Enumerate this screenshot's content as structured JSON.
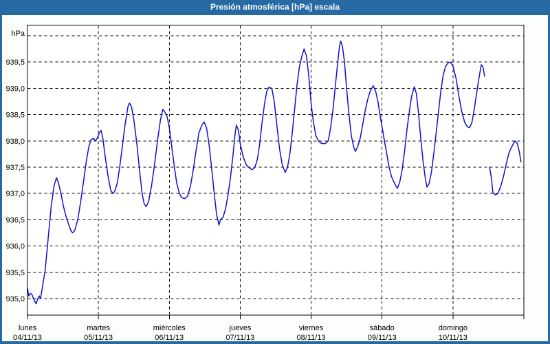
{
  "window": {
    "title": "Presión atmosférica [hPa] escala"
  },
  "colors": {
    "frame": "#2769A3",
    "titlebar_text": "#FFFFFF",
    "background": "#FCFEFC",
    "plot_background": "#FFFFFF",
    "line": "#1010CC",
    "grid": "#000000",
    "axis_text": "#000000"
  },
  "chart_data": {
    "type": "line",
    "title": "Presión atmosférica [hPa] escala",
    "unit_label": "hPa",
    "ylabel": "hPa",
    "grid": "dashed",
    "legend": "none",
    "ylim": [
      934.7,
      940.2
    ],
    "y_tick_step": 0.5,
    "y_ticks": [
      {
        "label": "939,5",
        "value": 939.5
      },
      {
        "label": "939,0",
        "value": 939.0
      },
      {
        "label": "938,5",
        "value": 938.5
      },
      {
        "label": "938,0",
        "value": 938.0
      },
      {
        "label": "937,5",
        "value": 937.5
      },
      {
        "label": "937,0",
        "value": 937.0
      },
      {
        "label": "936,5",
        "value": 936.5
      },
      {
        "label": "936,0",
        "value": 936.0
      },
      {
        "label": "935,5",
        "value": 935.5
      },
      {
        "label": "935,0",
        "value": 935.0
      }
    ],
    "x_days": [
      {
        "name": "lunes",
        "date": "04/11/13"
      },
      {
        "name": "martes",
        "date": "05/11/13"
      },
      {
        "name": "miércoles",
        "date": "06/11/13"
      },
      {
        "name": "jueves",
        "date": "07/11/13"
      },
      {
        "name": "viernes",
        "date": "08/11/13"
      },
      {
        "name": "sábado",
        "date": "09/11/13"
      },
      {
        "name": "domingo",
        "date": "10/11/13"
      }
    ],
    "x_unit": "hours since Monday 00:00",
    "xlim": [
      0,
      168
    ],
    "series": [
      {
        "name": "Presión atmosférica [hPa]",
        "points": [
          [
            0,
            935.2
          ],
          [
            0.4,
            935.05
          ],
          [
            1,
            935.1
          ],
          [
            1.5,
            935.08
          ],
          [
            2,
            935.0
          ],
          [
            2.9,
            934.9
          ],
          [
            3.5,
            935.0
          ],
          [
            4,
            935.05
          ],
          [
            4.4,
            935.0
          ],
          [
            5,
            935.2
          ],
          [
            6,
            935.55
          ],
          [
            7,
            936.15
          ],
          [
            8,
            936.75
          ],
          [
            9,
            937.15
          ],
          [
            9.8,
            937.3
          ],
          [
            10.5,
            937.2
          ],
          [
            11.3,
            937.0
          ],
          [
            12.2,
            936.75
          ],
          [
            13.1,
            936.55
          ],
          [
            14,
            936.4
          ],
          [
            14.8,
            936.28
          ],
          [
            15.3,
            936.25
          ],
          [
            16,
            936.3
          ],
          [
            17,
            936.5
          ],
          [
            18,
            936.85
          ],
          [
            19,
            937.25
          ],
          [
            20,
            937.65
          ],
          [
            20.8,
            937.9
          ],
          [
            21.5,
            938.02
          ],
          [
            22.3,
            938.05
          ],
          [
            23,
            938.0
          ],
          [
            23.6,
            938.05
          ],
          [
            24.3,
            938.15
          ],
          [
            24.9,
            938.2
          ],
          [
            25.5,
            938.05
          ],
          [
            26.3,
            937.7
          ],
          [
            27.2,
            937.35
          ],
          [
            28.2,
            937.05
          ],
          [
            29,
            937.0
          ],
          [
            29.6,
            937.05
          ],
          [
            30.4,
            937.2
          ],
          [
            31.2,
            937.5
          ],
          [
            32,
            937.85
          ],
          [
            33,
            938.3
          ],
          [
            34,
            938.65
          ],
          [
            34.5,
            938.72
          ],
          [
            35.2,
            938.65
          ],
          [
            36,
            938.4
          ],
          [
            37,
            937.95
          ],
          [
            38,
            937.4
          ],
          [
            38.8,
            937.0
          ],
          [
            39.5,
            936.8
          ],
          [
            40.2,
            936.75
          ],
          [
            41,
            936.85
          ],
          [
            42,
            937.15
          ],
          [
            43,
            937.55
          ],
          [
            44,
            938.0
          ],
          [
            45,
            938.4
          ],
          [
            45.8,
            938.6
          ],
          [
            46.5,
            938.55
          ],
          [
            47.3,
            938.45
          ],
          [
            48,
            938.25
          ],
          [
            48.8,
            937.9
          ],
          [
            49.6,
            937.55
          ],
          [
            50.5,
            937.2
          ],
          [
            51.4,
            937.0
          ],
          [
            52.2,
            936.92
          ],
          [
            53.2,
            936.9
          ],
          [
            54.2,
            936.95
          ],
          [
            55.2,
            937.15
          ],
          [
            56.1,
            937.45
          ],
          [
            57,
            937.8
          ],
          [
            58,
            938.15
          ],
          [
            59,
            938.3
          ],
          [
            59.8,
            938.36
          ],
          [
            60.6,
            938.25
          ],
          [
            61.4,
            937.95
          ],
          [
            62.2,
            937.55
          ],
          [
            63.1,
            937.05
          ],
          [
            64,
            936.6
          ],
          [
            64.8,
            936.4
          ],
          [
            65.3,
            936.5
          ],
          [
            66.2,
            936.55
          ],
          [
            67,
            936.7
          ],
          [
            67.8,
            936.95
          ],
          [
            68.7,
            937.3
          ],
          [
            69.5,
            937.7
          ],
          [
            70.2,
            938.1
          ],
          [
            70.7,
            938.3
          ],
          [
            71.4,
            938.2
          ],
          [
            72,
            937.95
          ],
          [
            73,
            937.7
          ],
          [
            74,
            937.55
          ],
          [
            74.8,
            937.5
          ],
          [
            76,
            937.45
          ],
          [
            77,
            937.5
          ],
          [
            77.8,
            937.65
          ],
          [
            78.6,
            937.95
          ],
          [
            79.4,
            938.35
          ],
          [
            80.2,
            938.7
          ],
          [
            81,
            938.95
          ],
          [
            81.7,
            939.02
          ],
          [
            82.7,
            939.0
          ],
          [
            83.5,
            938.75
          ],
          [
            84.4,
            938.3
          ],
          [
            85.3,
            937.85
          ],
          [
            86.2,
            937.55
          ],
          [
            87.2,
            937.4
          ],
          [
            88,
            937.5
          ],
          [
            88.8,
            937.75
          ],
          [
            89.6,
            938.15
          ],
          [
            90.4,
            938.6
          ],
          [
            91.2,
            939.05
          ],
          [
            92,
            939.4
          ],
          [
            92.8,
            939.6
          ],
          [
            93.6,
            939.75
          ],
          [
            94.4,
            939.62
          ],
          [
            95.2,
            939.25
          ],
          [
            96,
            938.7
          ],
          [
            96.8,
            938.35
          ],
          [
            97.6,
            938.1
          ],
          [
            98.5,
            938.0
          ],
          [
            99.5,
            937.95
          ],
          [
            100.8,
            937.95
          ],
          [
            101.8,
            938.0
          ],
          [
            102.6,
            938.25
          ],
          [
            103.4,
            938.6
          ],
          [
            104.2,
            939.05
          ],
          [
            105,
            939.5
          ],
          [
            105.6,
            939.8
          ],
          [
            106,
            939.9
          ],
          [
            106.6,
            939.8
          ],
          [
            107.3,
            939.5
          ],
          [
            108,
            939.0
          ],
          [
            108.8,
            938.5
          ],
          [
            109.6,
            938.1
          ],
          [
            110.4,
            937.88
          ],
          [
            111,
            937.8
          ],
          [
            111.8,
            937.9
          ],
          [
            112.6,
            938.05
          ],
          [
            113.4,
            938.3
          ],
          [
            114.2,
            938.55
          ],
          [
            115.1,
            938.78
          ],
          [
            116,
            938.95
          ],
          [
            117,
            939.05
          ],
          [
            117.8,
            938.95
          ],
          [
            118.6,
            938.75
          ],
          [
            119.3,
            938.5
          ],
          [
            120,
            938.27
          ],
          [
            120.8,
            938.0
          ],
          [
            121.6,
            937.75
          ],
          [
            122.4,
            937.5
          ],
          [
            123.2,
            937.32
          ],
          [
            124,
            937.22
          ],
          [
            124.6,
            937.15
          ],
          [
            125.2,
            937.1
          ],
          [
            126,
            937.22
          ],
          [
            126.8,
            937.45
          ],
          [
            127.6,
            937.8
          ],
          [
            128.4,
            938.2
          ],
          [
            129.2,
            938.55
          ],
          [
            130,
            938.85
          ],
          [
            130.9,
            939.03
          ],
          [
            131.6,
            938.9
          ],
          [
            132.3,
            938.55
          ],
          [
            133.1,
            938.05
          ],
          [
            133.9,
            937.6
          ],
          [
            134.6,
            937.3
          ],
          [
            135.2,
            937.12
          ],
          [
            135.9,
            937.18
          ],
          [
            136.7,
            937.4
          ],
          [
            137.5,
            937.75
          ],
          [
            138.3,
            938.15
          ],
          [
            139.1,
            938.55
          ],
          [
            139.9,
            938.95
          ],
          [
            140.7,
            939.25
          ],
          [
            141.5,
            939.42
          ],
          [
            142.3,
            939.48
          ],
          [
            143.2,
            939.5
          ],
          [
            144,
            939.42
          ],
          [
            145,
            939.2
          ],
          [
            146,
            938.85
          ],
          [
            147,
            938.55
          ],
          [
            148,
            938.35
          ],
          [
            148.9,
            938.27
          ],
          [
            149.6,
            938.25
          ],
          [
            150.4,
            938.35
          ],
          [
            151.2,
            938.6
          ],
          [
            152,
            938.9
          ],
          [
            152.8,
            939.2
          ],
          [
            153.6,
            939.45
          ],
          [
            154.2,
            939.4
          ],
          [
            154.7,
            939.23
          ],
          null,
          [
            156.4,
            937.5
          ],
          [
            157,
            937.3
          ],
          [
            157.5,
            937.02
          ],
          [
            158.3,
            936.97
          ],
          [
            159.2,
            937.0
          ],
          [
            160.1,
            937.12
          ],
          [
            161,
            937.3
          ],
          [
            162,
            937.55
          ],
          [
            163,
            937.78
          ],
          [
            164,
            937.9
          ],
          [
            165,
            938.0
          ],
          [
            165.8,
            937.95
          ],
          [
            166.5,
            937.78
          ],
          [
            167,
            937.6
          ]
        ]
      }
    ]
  }
}
